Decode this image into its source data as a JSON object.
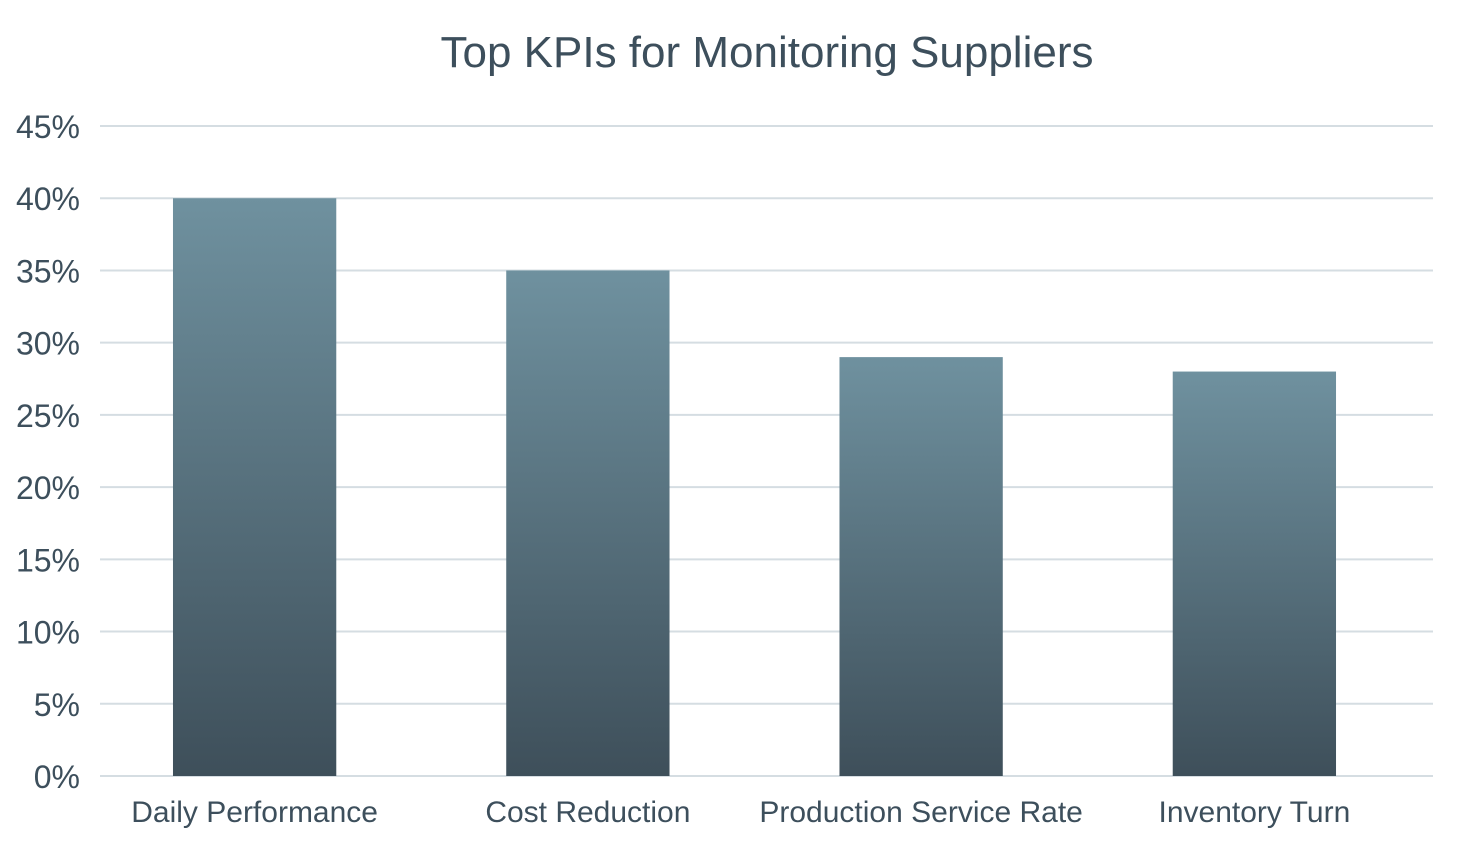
{
  "chart_data": {
    "type": "bar",
    "title": "Top KPIs for Monitoring Suppliers",
    "xlabel": "",
    "ylabel": "",
    "categories": [
      "Daily Performance",
      "Cost Reduction",
      "Production Service Rate",
      "Inventory Turn"
    ],
    "values": [
      40,
      35,
      29,
      28
    ],
    "ylim": [
      0,
      45
    ],
    "yticks": [
      0,
      5,
      10,
      15,
      20,
      25,
      30,
      35,
      40,
      45
    ],
    "ytick_labels": [
      "0%",
      "5%",
      "10%",
      "15%",
      "20%",
      "25%",
      "30%",
      "35%",
      "40%",
      "45%"
    ],
    "grid": true,
    "legend": "none",
    "colors": {
      "bar_top": "#6f919f",
      "bar_bottom": "#3e4f5a",
      "grid": "#d5dde2",
      "text": "#3d4f5c"
    }
  }
}
